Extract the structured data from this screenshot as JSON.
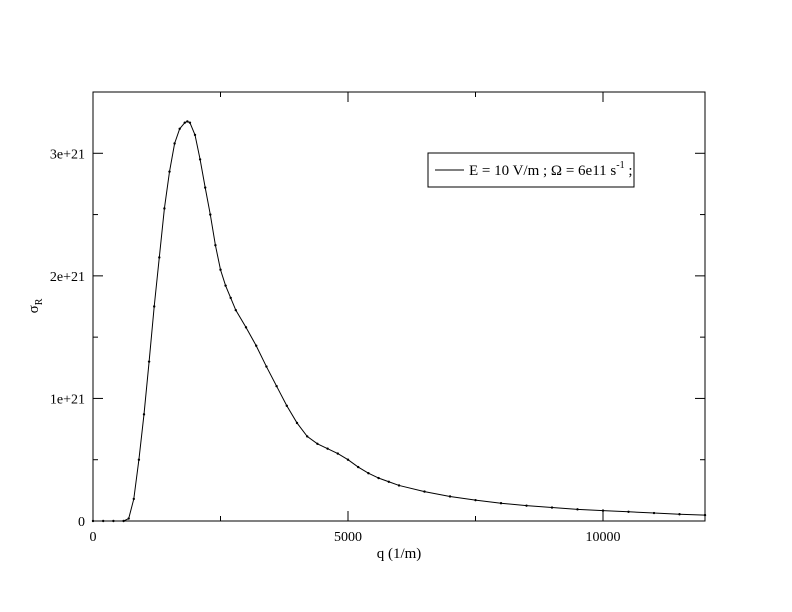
{
  "chart_data": {
    "type": "line",
    "title": "",
    "xlabel": "q (1/m)",
    "ylabel": "σ",
    "ylabel_subscript": "R",
    "xlim": [
      0,
      12000
    ],
    "ylim": [
      0,
      3.5e+21
    ],
    "x_ticks": [
      0,
      5000,
      10000
    ],
    "x_tick_labels": [
      "0",
      "5000",
      "10000"
    ],
    "y_ticks": [
      0,
      1e+21,
      2e+21,
      3e+21
    ],
    "y_tick_labels": [
      "0",
      "1e+21",
      "2e+21",
      "3e+21"
    ],
    "grid": false,
    "legend_placement": "top-right",
    "legend": {
      "text": "E = 10 V/m ; Ω = 6e11 s",
      "superscript": "-1",
      "suffix": " ;"
    },
    "series": [
      {
        "name": "E = 10 V/m ; Ω = 6e11 s-1 ;",
        "color": "#000000",
        "x": [
          0,
          200,
          400,
          600,
          700,
          800,
          900,
          1000,
          1100,
          1200,
          1300,
          1400,
          1500,
          1600,
          1700,
          1800,
          1850,
          1900,
          2000,
          2100,
          2200,
          2300,
          2400,
          2500,
          2600,
          2700,
          2800,
          3000,
          3200,
          3400,
          3600,
          3800,
          4000,
          4200,
          4400,
          4600,
          4800,
          5000,
          5200,
          5400,
          5600,
          5800,
          6000,
          6500,
          7000,
          7500,
          8000,
          8500,
          9000,
          9500,
          10000,
          10500,
          11000,
          11500,
          12000
        ],
        "y": [
          0,
          0,
          0,
          0,
          2e+19,
          1.8e+20,
          5e+20,
          8.7e+20,
          1.3e+21,
          1.75e+21,
          2.15e+21,
          2.55e+21,
          2.85e+21,
          3.08e+21,
          3.2e+21,
          3.25e+21,
          3.26e+21,
          3.25e+21,
          3.15e+21,
          2.95e+21,
          2.72e+21,
          2.5e+21,
          2.25e+21,
          2.05e+21,
          1.92e+21,
          1.82e+21,
          1.72e+21,
          1.58e+21,
          1.43e+21,
          1.26e+21,
          1.1e+21,
          9.4e+20,
          8e+20,
          6.9e+20,
          6.3e+20,
          5.9e+20,
          5.5e+20,
          5e+20,
          4.4e+20,
          3.9e+20,
          3.5e+20,
          3.2e+20,
          2.9e+20,
          2.4e+20,
          2e+20,
          1.7e+20,
          1.45e+20,
          1.25e+20,
          1.1e+20,
          9.5e+19,
          8.5e+19,
          7.5e+19,
          6.5e+19,
          5.5e+19,
          4.8e+19
        ]
      }
    ]
  }
}
